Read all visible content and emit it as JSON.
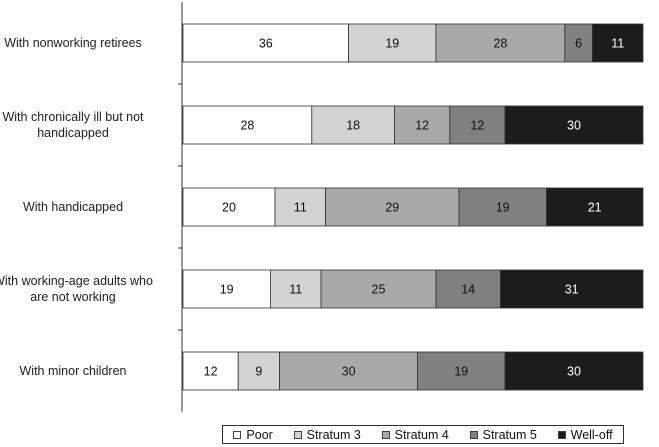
{
  "chart_data": {
    "type": "bar",
    "orientation": "horizontal",
    "stacked": true,
    "categories": [
      "With nonworking retirees",
      "With chronically ill but not handicapped",
      "With handicapped",
      "With working-age adults who are not working",
      "With minor children"
    ],
    "series": [
      {
        "name": "Poor",
        "color": "#ffffff",
        "values": [
          36,
          28,
          20,
          19,
          12
        ]
      },
      {
        "name": "Stratum 3",
        "color": "#d3d3d3",
        "values": [
          19,
          18,
          11,
          11,
          9
        ]
      },
      {
        "name": "Stratum 4",
        "color": "#a9a9a9",
        "values": [
          28,
          12,
          29,
          25,
          30
        ]
      },
      {
        "name": "Stratum 5",
        "color": "#808080",
        "values": [
          6,
          12,
          19,
          14,
          19
        ]
      },
      {
        "name": "Well-off",
        "color": "#1c1c1c",
        "values": [
          11,
          30,
          21,
          31,
          30
        ]
      }
    ],
    "title": "",
    "xlabel": "",
    "ylabel": "",
    "xlim": [
      0,
      100
    ],
    "grid": false,
    "legend": "bottom"
  }
}
